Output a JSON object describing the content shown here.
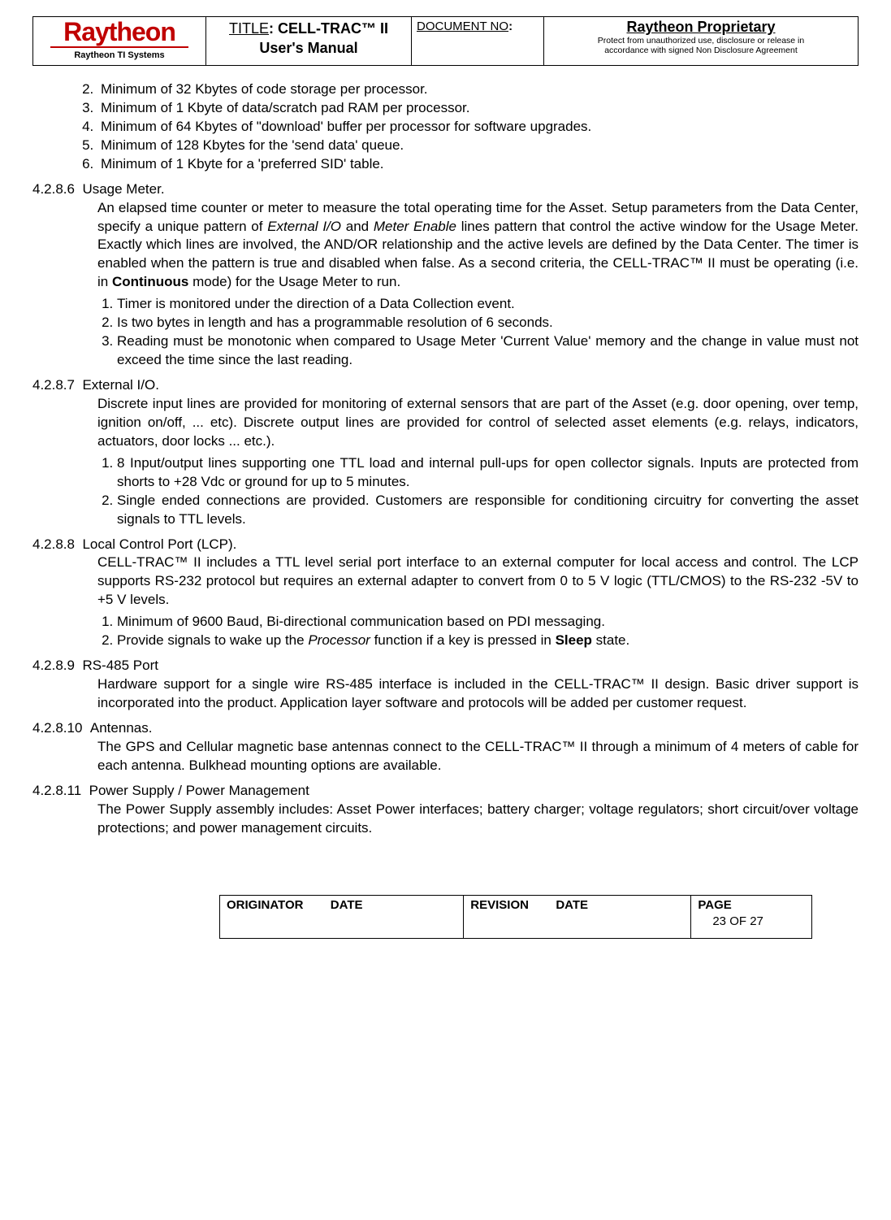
{
  "header": {
    "logo_main": "Raytheon",
    "logo_sub": "Raytheon TI Systems",
    "title_label": "TITLE",
    "title_value_line1": "CELL-TRAC™ II",
    "title_value_line2": "User's Manual",
    "docno_label": "DOCUMENT NO",
    "prop_title": "Raytheon Proprietary",
    "prop_line1": "Protect from unauthorized use, disclosure or release in",
    "prop_line2": "accordance with signed Non Disclosure Agreement"
  },
  "top_list_start": 2,
  "top_list": [
    "Minimum of 32 Kbytes of code storage per processor.",
    "Minimum of 1 Kbyte of data/scratch pad RAM per processor.",
    "Minimum of 64 Kbytes of \"download' buffer per processor for software upgrades.",
    "Minimum of 128 Kbytes for the 'send data' queue.",
    "Minimum of 1 Kbyte for a 'preferred SID' table."
  ],
  "sections": [
    {
      "num": "4.2.8.6",
      "title": "Usage Meter.",
      "body_html": "An elapsed time counter or meter to measure the total operating time for the Asset.  Setup parameters from the Data Center, specify a unique pattern of <span class=\"italic\">External I/O</span> and <span class=\"italic\">Meter Enable</span> lines pattern that control the active window for the Usage Meter.  Exactly which lines are involved, the AND/OR relationship and the active levels are defined by the Data Center.  The timer is enabled when the pattern is true and disabled when false.  As a second criteria, the CELL-TRAC™ II must be operating (i.e. in <span class=\"bold\">Continuous</span> mode) for the Usage Meter to run.",
      "items": [
        "Timer is monitored under the direction of a Data Collection event.",
        "Is two bytes in length and has a programmable resolution of 6 seconds.",
        "Reading must be monotonic when compared to Usage Meter 'Current Value' memory and the change in value must not exceed the time since the last reading."
      ]
    },
    {
      "num": "4.2.8.7",
      "title": "External I/O.",
      "body_html": "Discrete input lines are provided for monitoring of external sensors that are part of the Asset (e.g. door opening, over temp, ignition on/off, ... etc). Discrete output lines are provided for control of selected asset elements (e.g. relays, indicators, actuators, door locks ... etc.).",
      "items": [
        "8 Input/output lines supporting one TTL load and internal pull-ups for open collector signals.  Inputs are protected from shorts to +28 Vdc or ground for up to 5 minutes.",
        "Single ended connections are provided.  Customers are responsible for conditioning circuitry for converting the asset signals to TTL levels."
      ]
    },
    {
      "num": "4.2.8.8",
      "title": "Local Control Port (LCP).",
      "body_html": "CELL-TRAC™ II includes a TTL level serial port interface to an external computer for local access and control.  The LCP supports RS-232 protocol but requires an external adapter to convert from 0 to 5 V logic (TTL/CMOS) to the RS-232  -5V to +5 V levels.",
      "items_html": [
        "Minimum of 9600 Baud, Bi-directional communication based on PDI messaging.",
        "Provide signals to wake up the <span class=\"italic\">Processor</span> function if a key is pressed in <span class=\"bold\">Sleep</span> state."
      ]
    },
    {
      "num": "4.2.8.9",
      "title": "RS-485 Port",
      "body_html": "Hardware support for a single wire RS-485 interface is included in the CELL-TRAC™ II design.  Basic driver support is incorporated into the product.  Application layer software and protocols will be added per customer request.",
      "items": []
    },
    {
      "num": "4.2.8.10",
      "title": "Antennas.",
      "body_html": "The GPS and Cellular magnetic base antennas connect to the CELL-TRAC™ II through a minimum of 4 meters of cable for each antenna.  Bulkhead mounting options are available.",
      "items": []
    },
    {
      "num": "4.2.8.11",
      "title": "Power Supply / Power Management",
      "body_html": "The Power Supply assembly includes: Asset Power interfaces; battery charger; voltage regulators; short circuit/over voltage protections; and power management circuits.",
      "items": []
    }
  ],
  "footer": {
    "originator_label": "ORIGINATOR",
    "date_label": "DATE",
    "revision_label": "REVISION",
    "page_label": "PAGE",
    "page_value": "23 OF 27"
  },
  "colors": {
    "logo_red": "#c00000",
    "text": "#000000",
    "bg": "#ffffff"
  }
}
